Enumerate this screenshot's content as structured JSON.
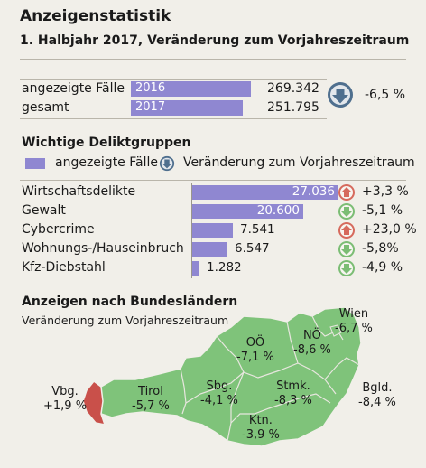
{
  "header": {
    "title": "Anzeigenstatistik",
    "subtitle": "1. Halbjahr 2017, Veränderung zum Vorjahreszeitraum"
  },
  "total": {
    "label_line1": "angezeigte Fälle",
    "label_line2": "gesamt",
    "rows": [
      {
        "year": "2016",
        "value": 269342,
        "value_text": "269.342"
      },
      {
        "year": "2017",
        "value": 251795,
        "value_text": "251.795"
      }
    ],
    "change": "-6,5 %",
    "direction": "down"
  },
  "groups": {
    "heading": "Wichtige Deliktgruppen",
    "legend_bars": "angezeigte Fälle",
    "legend_change": "Veränderung zum Vorjahreszeitraum"
  },
  "chart_data": {
    "type": "bar",
    "categories": [
      "Wirtschaftsdelikte",
      "Gewalt",
      "Cybercrime",
      "Wohnungs-/Hauseinbruch",
      "Kfz-Diebstahl"
    ],
    "values": [
      27036,
      20600,
      7541,
      6547,
      1282
    ],
    "value_labels": [
      "27.036",
      "20.600",
      "7.541",
      "6.547",
      "1.282"
    ],
    "changes": [
      "+3,3 %",
      "-5,1 %",
      "+23,0 %",
      "-5,8%",
      "-4,9 %"
    ],
    "directions": [
      "up",
      "down",
      "up",
      "down",
      "down"
    ]
  },
  "map": {
    "heading": "Anzeigen nach Bundesländern",
    "subheading": "Veränderung zum Vorjahreszeitraum",
    "regions": [
      {
        "name": "Wien",
        "change": "-6,7 %"
      },
      {
        "name": "NÖ",
        "change": "-8,6 %"
      },
      {
        "name": "OÖ",
        "change": "-7,1 %"
      },
      {
        "name": "Sbg.",
        "change": "-4,1 %"
      },
      {
        "name": "Stmk.",
        "change": "-8,3 %"
      },
      {
        "name": "Bgld.",
        "change": "-8,4 %"
      },
      {
        "name": "Ktn.",
        "change": "-3,9 %"
      },
      {
        "name": "Tirol",
        "change": "-5,7 %"
      },
      {
        "name": "Vbg.",
        "change": "+1,9 %"
      }
    ]
  },
  "colors": {
    "bar": "#8f87d1",
    "up": "#d66a5d",
    "down": "#7bbd74",
    "down_dark": "#4f6f8e",
    "map_green": "#7fc37a",
    "map_red": "#c9504a"
  }
}
